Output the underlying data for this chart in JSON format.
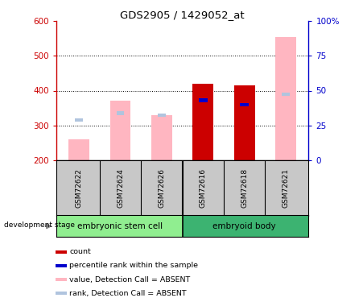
{
  "title": "GDS2905 / 1429052_at",
  "categories": [
    "GSM72622",
    "GSM72624",
    "GSM72626",
    "GSM72616",
    "GSM72618",
    "GSM72621"
  ],
  "group_labels": [
    "embryonic stem cell",
    "embryoid body"
  ],
  "ylim_left": [
    200,
    600
  ],
  "ylim_right": [
    0,
    100
  ],
  "yticks_left": [
    200,
    300,
    400,
    500,
    600
  ],
  "yticks_right": [
    0,
    25,
    50,
    75,
    100
  ],
  "ytick_labels_right": [
    "0",
    "25",
    "50",
    "75",
    "100%"
  ],
  "value_absent_bars": [
    260,
    370,
    330,
    0,
    0,
    555
  ],
  "rank_absent_squares": [
    315,
    335,
    330,
    0,
    0,
    390
  ],
  "count_bars": [
    0,
    0,
    0,
    420,
    415,
    0
  ],
  "percentile_bars": [
    0,
    0,
    0,
    372,
    360,
    0
  ],
  "bar_width": 0.5,
  "color_value_absent": "#FFB6C1",
  "color_rank_absent": "#B0C4DE",
  "color_count": "#CC0000",
  "color_percentile": "#0000CC",
  "left_axis_color": "#CC0000",
  "right_axis_color": "#0000CC",
  "development_stage_label": "development stage",
  "background_color": "#FFFFFF",
  "legend_items": [
    {
      "label": "count",
      "color": "#CC0000"
    },
    {
      "label": "percentile rank within the sample",
      "color": "#0000CC"
    },
    {
      "label": "value, Detection Call = ABSENT",
      "color": "#FFB6C1"
    },
    {
      "label": "rank, Detection Call = ABSENT",
      "color": "#B0C4DE"
    }
  ],
  "group1_color": "#90EE90",
  "group2_color": "#3CB371",
  "sample_box_color": "#C8C8C8"
}
